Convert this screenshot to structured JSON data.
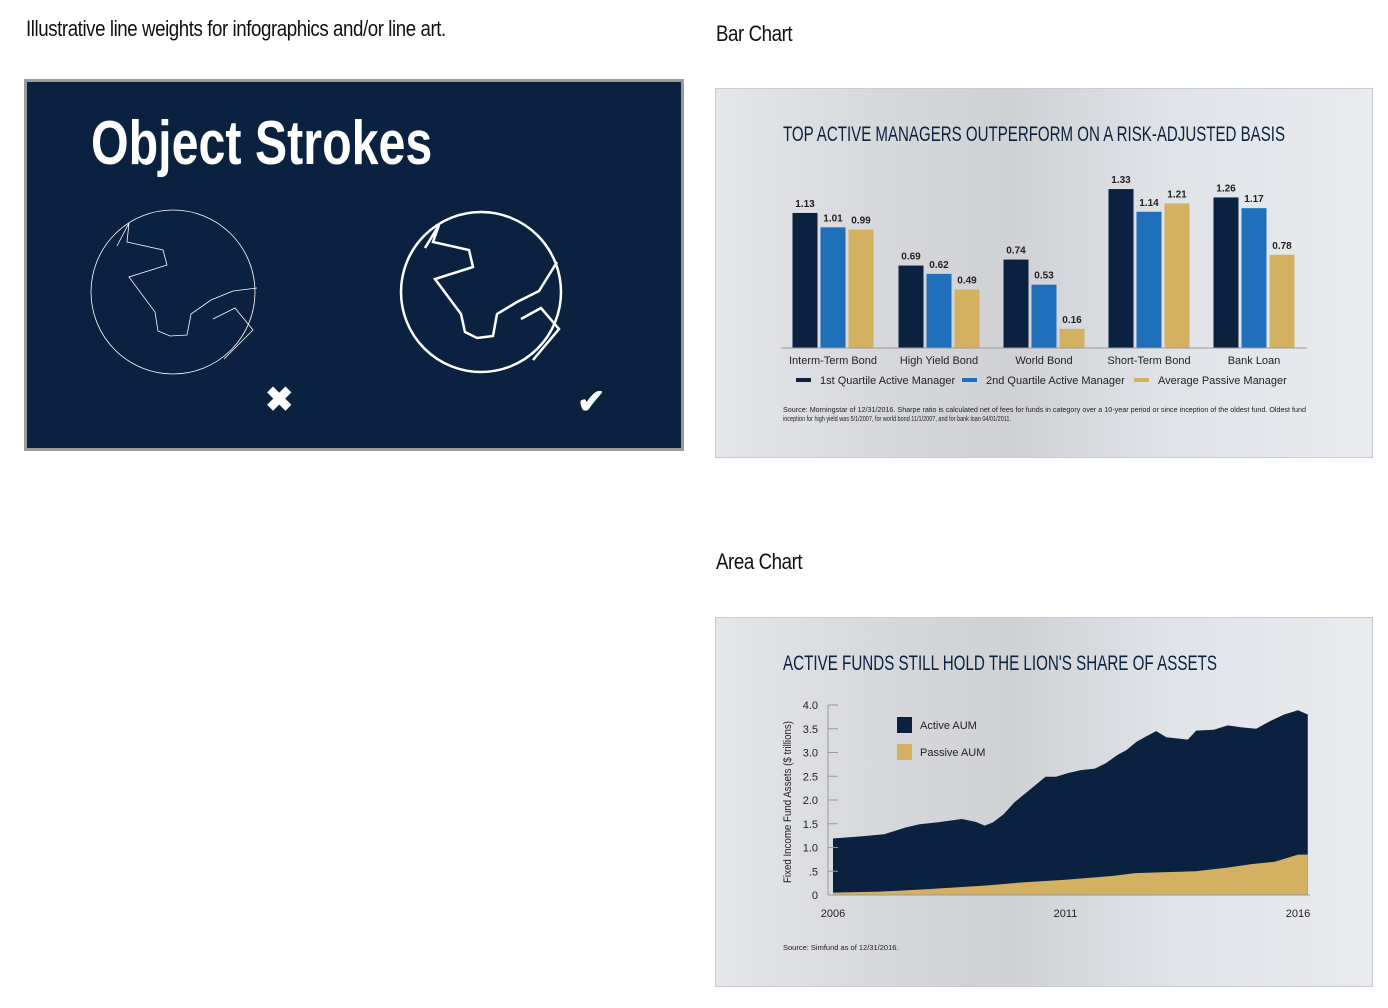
{
  "left": {
    "caption": "Illustrative line weights for infographics and/or line art.",
    "box_title": "Object Strokes",
    "wrong_icon": "x-mark-icon",
    "right_icon": "check-mark-icon",
    "colors": {
      "background": "#0a2240",
      "stroke": "#ffffff"
    }
  },
  "bar_section": {
    "heading": "Bar Chart"
  },
  "area_section": {
    "heading": "Area Chart"
  },
  "chart_data": [
    {
      "type": "bar",
      "title": "TOP ACTIVE MANAGERS OUTPERFORM ON A RISK-ADJUSTED BASIS",
      "categories": [
        "Interm-Term Bond",
        "High Yield Bond",
        "World Bond",
        "Short-Term Bond",
        "Bank Loan"
      ],
      "series": [
        {
          "name": "1st Quartile Active Manager",
          "color": "#0a2240",
          "values": [
            1.13,
            0.69,
            0.74,
            1.33,
            1.26
          ]
        },
        {
          "name": "2nd Quartile Active Manager",
          "color": "#1f6fba",
          "values": [
            1.01,
            0.62,
            0.53,
            1.14,
            1.17
          ]
        },
        {
          "name": "Average Passive Manager",
          "color": "#d4b062",
          "values": [
            0.99,
            0.49,
            0.16,
            1.21,
            0.78
          ]
        }
      ],
      "legend": "bottom",
      "source": [
        "Source: Morningstar of 12/31/2016. Sharpe ratio is calculated net of fees for funds in category over a 10-year period or since inception of the oldest fund. Oldest fund",
        "inception for high yield was 5/1/2007, for world bond 11/1/2007, and for bank loan 04/01/2011."
      ]
    },
    {
      "type": "area",
      "title": "ACTIVE FUNDS STILL HOLD THE LION'S SHARE OF ASSETS",
      "ylabel": "Fixed Income Fund Assets ($ trillions)",
      "ylim": [
        0,
        4.0
      ],
      "yticks": [
        "0",
        ".5",
        "1.0",
        "1.5",
        "2.0",
        "2.5",
        "3.0",
        "3.5",
        "4.0"
      ],
      "xticks": [
        "2006",
        "2011",
        "2016"
      ],
      "legend": "top-left",
      "series": [
        {
          "name": "Active AUM",
          "color": "#0a2240",
          "x": [
            2006.0,
            2006.66,
            2007.1,
            2007.56,
            2007.86,
            2008.24,
            2008.77,
            2009.07,
            2009.26,
            2009.44,
            2009.67,
            2009.9,
            2010.35,
            2010.57,
            2010.8,
            2011.03,
            2011.33,
            2011.63,
            2011.86,
            2012.12,
            2012.31,
            2012.53,
            2012.95,
            2013.17,
            2013.63,
            2013.81,
            2014.19,
            2014.49,
            2014.79,
            2015.1,
            2015.4,
            2015.7,
            2016.0,
            2016.21
          ],
          "y": [
            1.19,
            1.24,
            1.28,
            1.42,
            1.49,
            1.53,
            1.6,
            1.54,
            1.46,
            1.53,
            1.7,
            1.95,
            2.31,
            2.49,
            2.49,
            2.56,
            2.63,
            2.66,
            2.77,
            2.95,
            3.05,
            3.23,
            3.45,
            3.32,
            3.27,
            3.46,
            3.48,
            3.57,
            3.53,
            3.5,
            3.66,
            3.8,
            3.89,
            3.8
          ]
        },
        {
          "name": "Passive AUM",
          "color": "#d4b062",
          "x": [
            2006.0,
            2007.0,
            2008.0,
            2009.3,
            2010.0,
            2011.0,
            2012.0,
            2012.5,
            2013.8,
            2014.5,
            2015.0,
            2015.5,
            2016.0,
            2016.21
          ],
          "y": [
            0.05,
            0.07,
            0.12,
            0.2,
            0.26,
            0.32,
            0.4,
            0.46,
            0.5,
            0.58,
            0.65,
            0.7,
            0.85,
            0.85
          ]
        }
      ],
      "source": "Source: Simfund as of 12/31/2016."
    }
  ]
}
